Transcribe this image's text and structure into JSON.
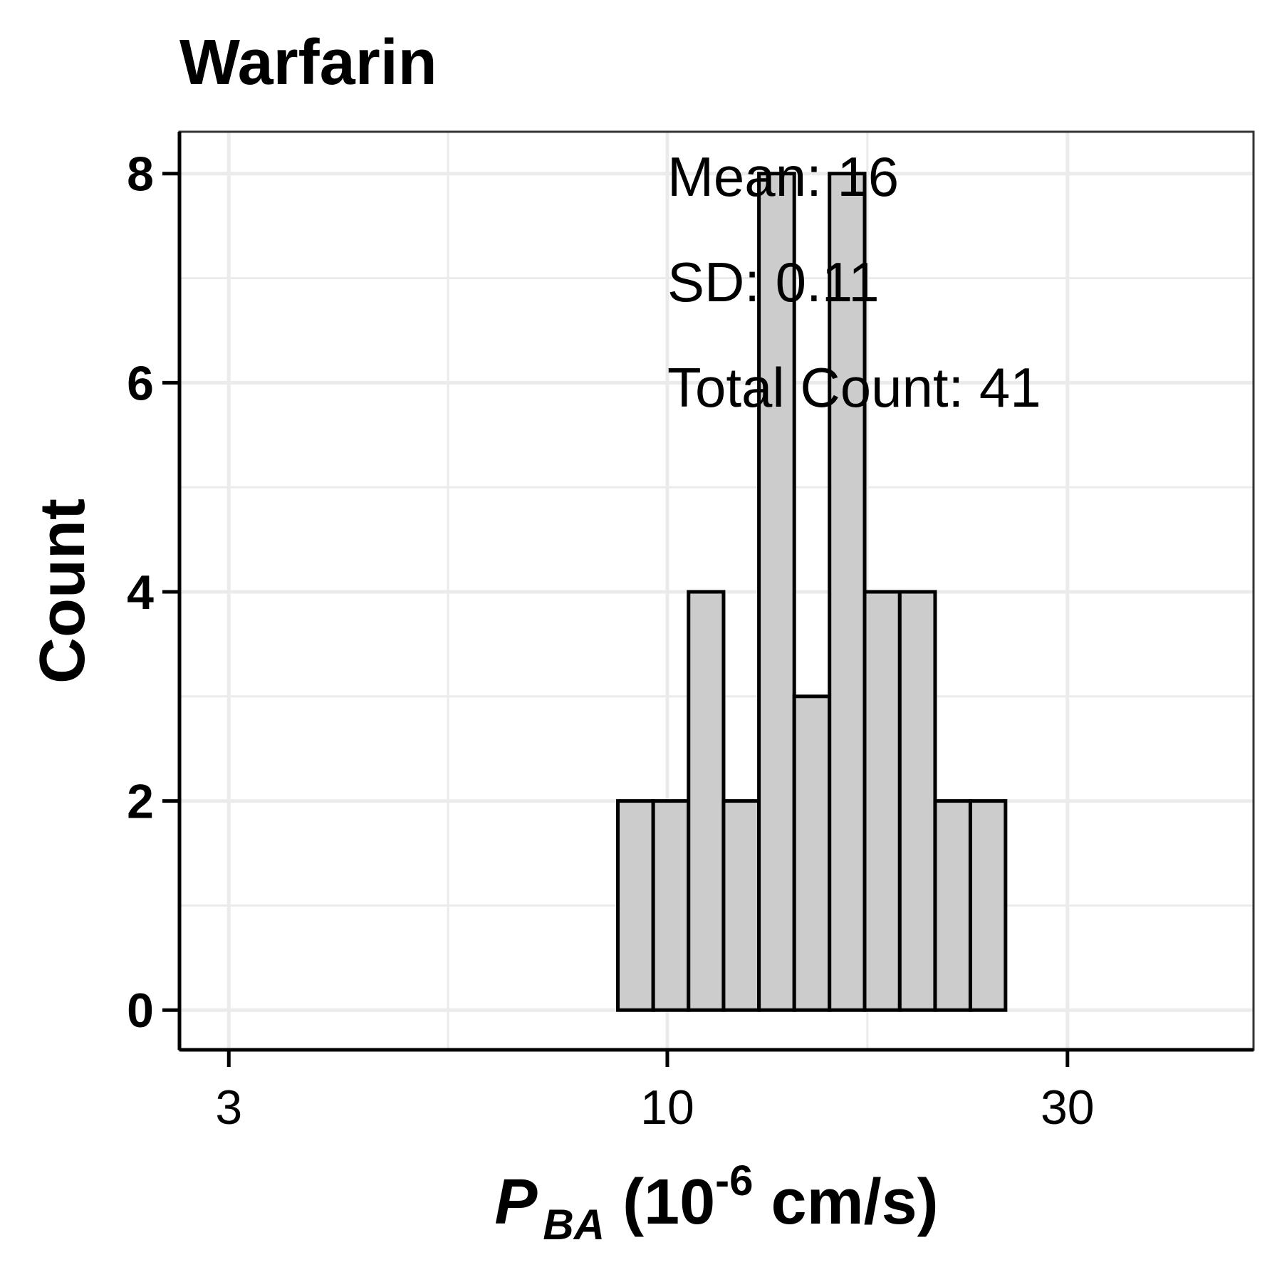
{
  "chart_data": {
    "type": "bar",
    "title": "Warfarin",
    "xlabel": {
      "main": "P",
      "subscript": "BA",
      "unit_open": " (10",
      "superscript": "-6",
      "unit_close": " cm/s)"
    },
    "ylabel": "Count",
    "x_scale": "log10",
    "xlim": [
      2.62,
      50.0
    ],
    "ylim": [
      -0.38,
      8.4
    ],
    "x_ticks": [
      {
        "value": 3,
        "label": "3"
      },
      {
        "value": 10,
        "label": "10"
      },
      {
        "value": 30,
        "label": "30"
      }
    ],
    "y_ticks": [
      {
        "value": 0,
        "label": "0"
      },
      {
        "value": 2,
        "label": "2"
      },
      {
        "value": 4,
        "label": "4"
      },
      {
        "value": 6,
        "label": "6"
      },
      {
        "value": 8,
        "label": "8"
      }
    ],
    "grid": true,
    "bins": [
      {
        "x0": 3.32,
        "x1": 3.66,
        "count": 0
      },
      {
        "x0": 3.66,
        "x1": 4.03,
        "count": 0
      },
      {
        "x0": 4.03,
        "x1": 4.44,
        "count": 0
      },
      {
        "x0": 4.44,
        "x1": 4.89,
        "count": 0
      },
      {
        "x0": 4.89,
        "x1": 5.39,
        "count": 0
      },
      {
        "x0": 5.39,
        "x1": 5.93,
        "count": 0
      },
      {
        "x0": 5.93,
        "x1": 6.53,
        "count": 0
      },
      {
        "x0": 6.53,
        "x1": 7.2,
        "count": 0
      },
      {
        "x0": 7.2,
        "x1": 7.93,
        "count": 0
      },
      {
        "x0": 7.93,
        "x1": 8.73,
        "count": 0
      },
      {
        "x0": 8.73,
        "x1": 9.62,
        "count": 2
      },
      {
        "x0": 9.62,
        "x1": 10.6,
        "count": 2
      },
      {
        "x0": 10.6,
        "x1": 11.67,
        "count": 4
      },
      {
        "x0": 11.67,
        "x1": 12.86,
        "count": 2
      },
      {
        "x0": 12.86,
        "x1": 14.17,
        "count": 8
      },
      {
        "x0": 14.17,
        "x1": 15.61,
        "count": 3
      },
      {
        "x0": 15.61,
        "x1": 17.19,
        "count": 8
      },
      {
        "x0": 17.19,
        "x1": 18.93,
        "count": 4
      },
      {
        "x0": 18.93,
        "x1": 20.86,
        "count": 4
      },
      {
        "x0": 20.86,
        "x1": 22.98,
        "count": 2
      },
      {
        "x0": 22.98,
        "x1": 25.31,
        "count": 2
      },
      {
        "x0": 25.31,
        "x1": 27.88,
        "count": 0
      },
      {
        "x0": 27.88,
        "x1": 30.71,
        "count": 0
      },
      {
        "x0": 30.71,
        "x1": 33.83,
        "count": 0
      },
      {
        "x0": 33.83,
        "x1": 37.27,
        "count": 0
      },
      {
        "x0": 37.27,
        "x1": 41.05,
        "count": 0
      },
      {
        "x0": 41.05,
        "x1": 45.22,
        "count": 0
      }
    ],
    "annotations": [
      "Mean: 16",
      "SD: 0.11",
      "Total Count: 41"
    ]
  }
}
